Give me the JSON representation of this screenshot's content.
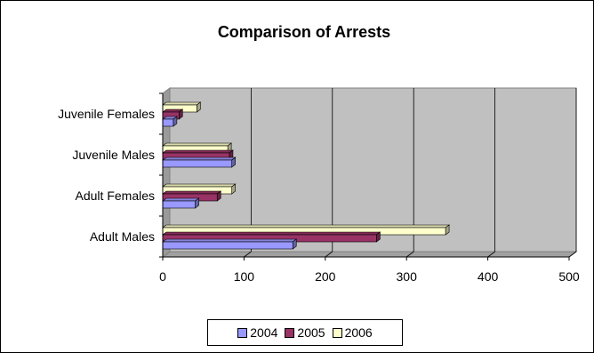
{
  "chart_data": {
    "type": "bar",
    "orientation": "horizontal",
    "title": "Comparison of Arrests",
    "categories": [
      "Adult Males",
      "Adult Females",
      "Juvenile Males",
      "Juvenile Females"
    ],
    "series": [
      {
        "name": "2004",
        "values": [
          160,
          40,
          85,
          13
        ],
        "color": "#9999ff"
      },
      {
        "name": "2005",
        "values": [
          263,
          67,
          82,
          20
        ],
        "color": "#993366"
      },
      {
        "name": "2006",
        "values": [
          348,
          85,
          80,
          42
        ],
        "color": "#ffffcc"
      }
    ],
    "xlim": [
      0,
      500
    ],
    "xticks": [
      "0",
      "100",
      "200",
      "300",
      "400",
      "500"
    ],
    "grid": true,
    "plot_background": "#c0c0c0",
    "legend_position": "bottom",
    "style": "3d"
  }
}
